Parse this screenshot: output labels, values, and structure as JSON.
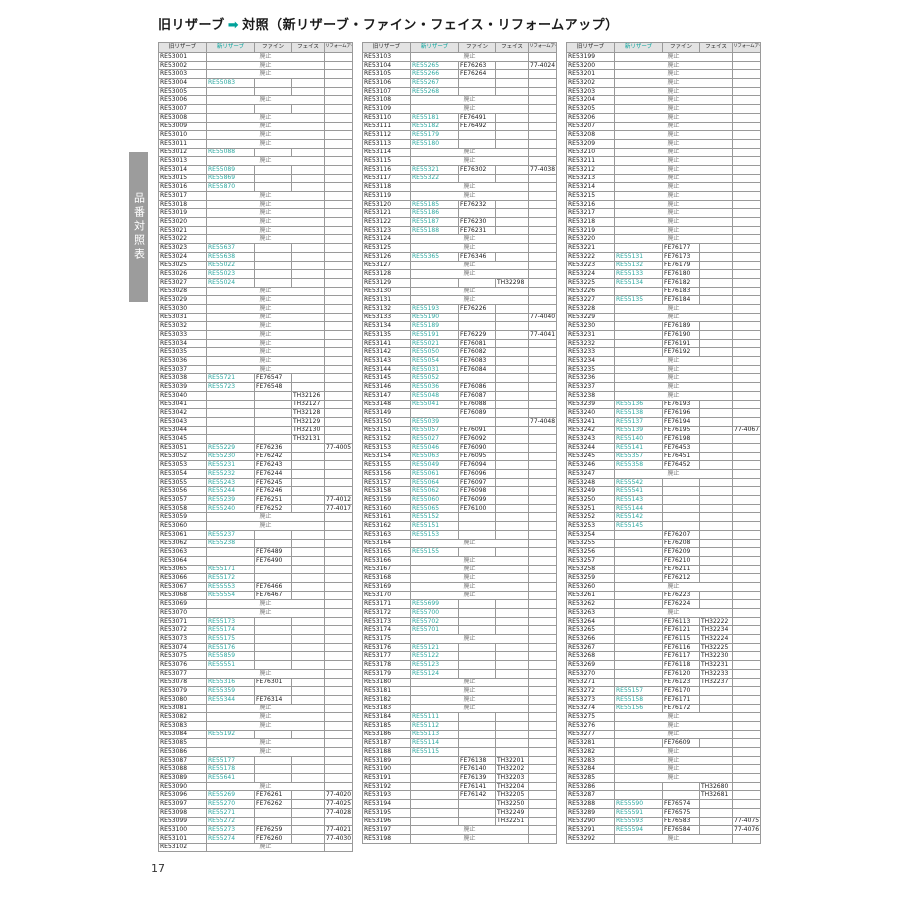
{
  "page": {
    "title_old": "旧リザーブ",
    "title_arrow": "➡",
    "title_rest": "対照（新リザーブ・ファイン・フェイス・リフォームアップ）",
    "side_tab": "品番対照表",
    "page_number": "17",
    "accent_color": "#00a29a",
    "discontinued_label": "廃止"
  },
  "columns": [
    "旧リザーブ",
    "新リザーブ",
    "ファイン",
    "フェイス",
    "リフォームアップ"
  ],
  "tables": [
    {
      "rows": [
        [
          "RE53001",
          "廃止"
        ],
        [
          "RE53002",
          "廃止"
        ],
        [
          "RE53003",
          "廃止"
        ],
        [
          "RE53004",
          "RE55083"
        ],
        [
          "RE53005"
        ],
        [
          "RE53006",
          "廃止"
        ],
        [
          "RE53007"
        ],
        [
          "RE53008",
          "廃止"
        ],
        [
          "RE53009",
          "廃止"
        ],
        [
          "RE53010",
          "廃止"
        ],
        [
          "RE53011",
          "廃止"
        ],
        [
          "RE53012",
          "RE55088"
        ],
        [
          "RE53013",
          "廃止"
        ],
        [
          "RE53014",
          "RE55089"
        ],
        [
          "RE53015",
          "RE55869"
        ],
        [
          "RE53016",
          "RE55870"
        ],
        [
          "RE53017",
          "廃止"
        ],
        [
          "RE53018",
          "廃止"
        ],
        [
          "RE53019",
          "廃止"
        ],
        [
          "RE53020",
          "廃止"
        ],
        [
          "RE53021",
          "廃止"
        ],
        [
          "RE53022",
          "廃止"
        ],
        [
          "RE53023",
          "RE55637"
        ],
        [
          "RE53024",
          "RE55638"
        ],
        [
          "RE53025",
          "RE55022"
        ],
        [
          "RE53026",
          "RE55023"
        ],
        [
          "RE53027",
          "RE55024"
        ],
        [
          "RE53028",
          "廃止"
        ],
        [
          "RE53029",
          "廃止"
        ],
        [
          "RE53030",
          "廃止"
        ],
        [
          "RE53031",
          "廃止"
        ],
        [
          "RE53032",
          "廃止"
        ],
        [
          "RE53033",
          "廃止"
        ],
        [
          "RE53034",
          "廃止"
        ],
        [
          "RE53035",
          "廃止"
        ],
        [
          "RE53036",
          "廃止"
        ],
        [
          "RE53037",
          "廃止"
        ],
        [
          "RE53038",
          "RE55721",
          "FE76547"
        ],
        [
          "RE53039",
          "RE55723",
          "FE76548"
        ],
        [
          "RE53040",
          "",
          "",
          "TH32126"
        ],
        [
          "RE53041",
          "",
          "",
          "TH32127"
        ],
        [
          "RE53042",
          "",
          "",
          "TH32128"
        ],
        [
          "RE53043",
          "",
          "",
          "TH32129"
        ],
        [
          "RE53044",
          "",
          "",
          "TH32130"
        ],
        [
          "RE53045",
          "",
          "",
          "TH32131"
        ],
        [
          "RE53051",
          "RE55229",
          "FE76236",
          "",
          "77-4005"
        ],
        [
          "RE53052",
          "RE55230",
          "FE76242"
        ],
        [
          "RE53053",
          "RE55231",
          "FE76243"
        ],
        [
          "RE53054",
          "RE55232",
          "FE76244"
        ],
        [
          "RE53055",
          "RE55243",
          "FE76245"
        ],
        [
          "RE53056",
          "RE55244",
          "FE76246"
        ],
        [
          "RE53057",
          "RE55239",
          "FE76251",
          "",
          "77-4012"
        ],
        [
          "RE53058",
          "RE55240",
          "FE76252",
          "",
          "77-4017"
        ],
        [
          "RE53059",
          "廃止"
        ],
        [
          "RE53060",
          "廃止"
        ],
        [
          "RE53061",
          "RE55237"
        ],
        [
          "RE53062",
          "RE55238"
        ],
        [
          "RE53063",
          "",
          "FE76489"
        ],
        [
          "RE53064",
          "",
          "FE76490"
        ],
        [
          "RE53065",
          "RE55171"
        ],
        [
          "RE53066",
          "RE55172"
        ],
        [
          "RE53067",
          "RE55553",
          "FE76466"
        ],
        [
          "RE53068",
          "RE55554",
          "FE76467"
        ],
        [
          "RE53069",
          "廃止"
        ],
        [
          "RE53070",
          "廃止"
        ],
        [
          "RE53071",
          "RE55173"
        ],
        [
          "RE53072",
          "RE55174"
        ],
        [
          "RE53073",
          "RE55175"
        ],
        [
          "RE53074",
          "RE55176"
        ],
        [
          "RE53075",
          "RE55859"
        ],
        [
          "RE53076",
          "RE55551"
        ],
        [
          "RE53077",
          "廃止"
        ],
        [
          "RE53078",
          "RE55316",
          "FE76301"
        ],
        [
          "RE53079",
          "RE55359"
        ],
        [
          "RE53080",
          "RE55344",
          "FE76314"
        ],
        [
          "RE53081",
          "廃止"
        ],
        [
          "RE53082",
          "廃止"
        ],
        [
          "RE53083",
          "廃止"
        ],
        [
          "RE53084",
          "RE55192"
        ],
        [
          "RE53085",
          "廃止"
        ],
        [
          "RE53086",
          "廃止"
        ],
        [
          "RE53087",
          "RE55177"
        ],
        [
          "RE53088",
          "RE55178"
        ],
        [
          "RE53089",
          "RE55641"
        ],
        [
          "RE53090",
          "廃止"
        ],
        [
          "RE53096",
          "RE55269",
          "FE76261",
          "",
          "77-4020"
        ],
        [
          "RE53097",
          "RE55270",
          "FE76262",
          "",
          "77-4025"
        ],
        [
          "RE53098",
          "RE55271",
          "",
          "",
          "77-4028"
        ],
        [
          "RE53099",
          "RE55272"
        ],
        [
          "RE53100",
          "RE55273",
          "FE76259",
          "",
          "77-4021"
        ],
        [
          "RE53101",
          "RE55274",
          "FE76260",
          "",
          "77-4030"
        ],
        [
          "RE53102",
          "廃止"
        ]
      ]
    },
    {
      "rows": [
        [
          "RE53103",
          "廃止"
        ],
        [
          "RE53104",
          "RE55265",
          "FE76263",
          "",
          "77-4024"
        ],
        [
          "RE53105",
          "RE55266",
          "FE76264"
        ],
        [
          "RE53106",
          "RE55267"
        ],
        [
          "RE53107",
          "RE55268"
        ],
        [
          "RE53108",
          "廃止"
        ],
        [
          "RE53109",
          "廃止"
        ],
        [
          "RE53110",
          "RE55181",
          "FE76491"
        ],
        [
          "RE53111",
          "RE55182",
          "FE76492"
        ],
        [
          "RE53112",
          "RE55179"
        ],
        [
          "RE53113",
          "RE55180"
        ],
        [
          "RE53114",
          "廃止"
        ],
        [
          "RE53115",
          "廃止"
        ],
        [
          "RE53116",
          "RE55321",
          "FE76302",
          "",
          "77-4038"
        ],
        [
          "RE53117",
          "RE55322"
        ],
        [
          "RE53118",
          "廃止"
        ],
        [
          "RE53119",
          "廃止"
        ],
        [
          "RE53120",
          "RE55185",
          "FE76232"
        ],
        [
          "RE53121",
          "RE55186"
        ],
        [
          "RE53122",
          "RE55187",
          "FE76230"
        ],
        [
          "RE53123",
          "RE55188",
          "FE76231"
        ],
        [
          "RE53124",
          "廃止"
        ],
        [
          "RE53125",
          "廃止"
        ],
        [
          "RE53126",
          "RE55365",
          "FE76346"
        ],
        [
          "RE53127",
          "廃止"
        ],
        [
          "RE53128",
          "廃止"
        ],
        [
          "RE53129",
          "",
          "",
          "TH32298"
        ],
        [
          "RE53130",
          "廃止"
        ],
        [
          "RE53131",
          "廃止"
        ],
        [
          "RE53132",
          "RE55193",
          "FE76226"
        ],
        [
          "RE53133",
          "RE55190",
          "",
          "",
          "77-4040"
        ],
        [
          "RE53134",
          "RE55189"
        ],
        [
          "RE53135",
          "RE55191",
          "FE76229",
          "",
          "77-4041"
        ],
        [
          "RE53141",
          "RE55021",
          "FE76081"
        ],
        [
          "RE53142",
          "RE55050",
          "FE76082"
        ],
        [
          "RE53143",
          "RE55054",
          "FE76083"
        ],
        [
          "RE53144",
          "RE55031",
          "FE76084"
        ],
        [
          "RE53145",
          "RE55052"
        ],
        [
          "RE53146",
          "RE55036",
          "FE76086"
        ],
        [
          "RE53147",
          "RE55048",
          "FE76087"
        ],
        [
          "RE53148",
          "RE55041",
          "FE76088"
        ],
        [
          "RE53149",
          "",
          "FE76089"
        ],
        [
          "RE53150",
          "RE55039",
          "",
          "",
          "77-4048"
        ],
        [
          "RE53151",
          "RE55057",
          "FE76091"
        ],
        [
          "RE53152",
          "RE55027",
          "FE76092"
        ],
        [
          "RE53153",
          "RE55046",
          "FE76090"
        ],
        [
          "RE53154",
          "RE55063",
          "FE76095"
        ],
        [
          "RE53155",
          "RE55049",
          "FE76094"
        ],
        [
          "RE53156",
          "RE55061",
          "FE76096"
        ],
        [
          "RE53157",
          "RE55064",
          "FE76097"
        ],
        [
          "RE53158",
          "RE55062",
          "FE76098"
        ],
        [
          "RE53159",
          "RE55060",
          "FE76099"
        ],
        [
          "RE53160",
          "RE55065",
          "FE76100"
        ],
        [
          "RE53161",
          "RE55152"
        ],
        [
          "RE53162",
          "RE55151"
        ],
        [
          "RE53163",
          "RE55153"
        ],
        [
          "RE53164",
          "廃止"
        ],
        [
          "RE53165",
          "RE55155"
        ],
        [
          "RE53166",
          "廃止"
        ],
        [
          "RE53167",
          "廃止"
        ],
        [
          "RE53168",
          "廃止"
        ],
        [
          "RE53169",
          "廃止"
        ],
        [
          "RE53170",
          "廃止"
        ],
        [
          "RE53171",
          "RE55699"
        ],
        [
          "RE53172",
          "RE55700"
        ],
        [
          "RE53173",
          "RE55702"
        ],
        [
          "RE53174",
          "RE55701"
        ],
        [
          "RE53175",
          "廃止"
        ],
        [
          "RE53176",
          "RE55121"
        ],
        [
          "RE53177",
          "RE55122"
        ],
        [
          "RE53178",
          "RE55123"
        ],
        [
          "RE53179",
          "RE55124"
        ],
        [
          "RE53180",
          "廃止"
        ],
        [
          "RE53181",
          "廃止"
        ],
        [
          "RE53182",
          "廃止"
        ],
        [
          "RE53183",
          "廃止"
        ],
        [
          "RE53184",
          "RE55111"
        ],
        [
          "RE53185",
          "RE55112"
        ],
        [
          "RE53186",
          "RE55113"
        ],
        [
          "RE53187",
          "RE55114"
        ],
        [
          "RE53188",
          "RE55115"
        ],
        [
          "RE53189",
          "",
          "FE76138",
          "TH32201"
        ],
        [
          "RE53190",
          "",
          "FE76140",
          "TH32202"
        ],
        [
          "RE53191",
          "",
          "FE76139",
          "TH32203"
        ],
        [
          "RE53192",
          "",
          "FE76141",
          "TH32204"
        ],
        [
          "RE53193",
          "",
          "FE76142",
          "TH32205"
        ],
        [
          "RE53194",
          "",
          "",
          "TH32250"
        ],
        [
          "RE53195",
          "",
          "",
          "TH32249"
        ],
        [
          "RE53196",
          "",
          "",
          "TH32251"
        ],
        [
          "RE53197",
          "廃止"
        ],
        [
          "RE53198",
          "廃止"
        ]
      ]
    },
    {
      "rows": [
        [
          "RE53199",
          "廃止"
        ],
        [
          "RE53200",
          "廃止"
        ],
        [
          "RE53201",
          "廃止"
        ],
        [
          "RE53202",
          "廃止"
        ],
        [
          "RE53203",
          "廃止"
        ],
        [
          "RE53204",
          "廃止"
        ],
        [
          "RE53205",
          "廃止"
        ],
        [
          "RE53206",
          "廃止"
        ],
        [
          "RE53207",
          "廃止"
        ],
        [
          "RE53208",
          "廃止"
        ],
        [
          "RE53209",
          "廃止"
        ],
        [
          "RE53210",
          "廃止"
        ],
        [
          "RE53211",
          "廃止"
        ],
        [
          "RE53212",
          "廃止"
        ],
        [
          "RE53213",
          "廃止"
        ],
        [
          "RE53214",
          "廃止"
        ],
        [
          "RE53215",
          "廃止"
        ],
        [
          "RE53216",
          "廃止"
        ],
        [
          "RE53217",
          "廃止"
        ],
        [
          "RE53218",
          "廃止"
        ],
        [
          "RE53219",
          "廃止"
        ],
        [
          "RE53220",
          "廃止"
        ],
        [
          "RE53221",
          "",
          "FE76177"
        ],
        [
          "RE53222",
          "RE55131",
          "FE76173"
        ],
        [
          "RE53223",
          "RE55132",
          "FE76179"
        ],
        [
          "RE53224",
          "RE55133",
          "FE76180"
        ],
        [
          "RE53225",
          "RE55134",
          "FE76182"
        ],
        [
          "RE53226",
          "",
          "FE76183"
        ],
        [
          "RE53227",
          "RE55135",
          "FE76184"
        ],
        [
          "RE53228",
          "廃止"
        ],
        [
          "RE53229",
          "廃止"
        ],
        [
          "RE53230",
          "",
          "FE76189"
        ],
        [
          "RE53231",
          "",
          "FE76190"
        ],
        [
          "RE53232",
          "",
          "FE76191"
        ],
        [
          "RE53233",
          "",
          "FE76192"
        ],
        [
          "RE53234",
          "廃止"
        ],
        [
          "RE53235",
          "廃止"
        ],
        [
          "RE53236",
          "廃止"
        ],
        [
          "RE53237",
          "廃止"
        ],
        [
          "RE53238",
          "廃止"
        ],
        [
          "RE53239",
          "RE55136",
          "FE76193"
        ],
        [
          "RE53240",
          "RE55138",
          "FE76196"
        ],
        [
          "RE53241",
          "RE55137",
          "FE76194"
        ],
        [
          "RE53242",
          "RE55139",
          "FE76195",
          "",
          "77-4067"
        ],
        [
          "RE53243",
          "RE55140",
          "FE76198"
        ],
        [
          "RE53244",
          "RE55141",
          "FE76453"
        ],
        [
          "RE53245",
          "RE55357",
          "FE76451"
        ],
        [
          "RE53246",
          "RE55358",
          "FE76452"
        ],
        [
          "RE53247",
          "廃止"
        ],
        [
          "RE53248",
          "RE55542"
        ],
        [
          "RE53249",
          "RE55541"
        ],
        [
          "RE53250",
          "RE55143"
        ],
        [
          "RE53251",
          "RE55144"
        ],
        [
          "RE53252",
          "RE55142"
        ],
        [
          "RE53253",
          "RE55145"
        ],
        [
          "RE53254",
          "",
          "FE76207"
        ],
        [
          "RE53255",
          "",
          "FE76208"
        ],
        [
          "RE53256",
          "",
          "FE76209"
        ],
        [
          "RE53257",
          "",
          "FE76210"
        ],
        [
          "RE53258",
          "",
          "FE76211"
        ],
        [
          "RE53259",
          "",
          "FE76212"
        ],
        [
          "RE53260",
          "廃止"
        ],
        [
          "RE53261",
          "",
          "FE76223"
        ],
        [
          "RE53262",
          "",
          "FE76224"
        ],
        [
          "RE53263",
          "廃止"
        ],
        [
          "RE53264",
          "",
          "FE76113",
          "TH32222"
        ],
        [
          "RE53265",
          "",
          "FE76121",
          "TH32234"
        ],
        [
          "RE53266",
          "",
          "FE76115",
          "TH32224"
        ],
        [
          "RE53267",
          "",
          "FE76116",
          "TH32225"
        ],
        [
          "RE53268",
          "",
          "FE76117",
          "TH32230"
        ],
        [
          "RE53269",
          "",
          "FE76118",
          "TH32231"
        ],
        [
          "RE53270",
          "",
          "FE76120",
          "TH32233"
        ],
        [
          "RE53271",
          "",
          "FE76123",
          "TH32237"
        ],
        [
          "RE53272",
          "RE55157",
          "FE76170"
        ],
        [
          "RE53273",
          "RE55158",
          "FE76171"
        ],
        [
          "RE53274",
          "RE55156",
          "FE76172"
        ],
        [
          "RE53275",
          "廃止"
        ],
        [
          "RE53276",
          "廃止"
        ],
        [
          "RE53277",
          "廃止"
        ],
        [
          "RE53281",
          "",
          "FE76609"
        ],
        [
          "RE53282",
          "廃止"
        ],
        [
          "RE53283",
          "廃止"
        ],
        [
          "RE53284",
          "廃止"
        ],
        [
          "RE53285",
          "廃止"
        ],
        [
          "RE53286",
          "",
          "",
          "TH32680"
        ],
        [
          "RE53287",
          "",
          "",
          "TH32681"
        ],
        [
          "RE53288",
          "RE55590",
          "FE76574"
        ],
        [
          "RE53289",
          "RE55591",
          "FE76575"
        ],
        [
          "RE53290",
          "RE55593",
          "FE76583",
          "",
          "77-4075"
        ],
        [
          "RE53291",
          "RE55594",
          "FE76584",
          "",
          "77-4076"
        ],
        [
          "RE53292",
          "廃止"
        ]
      ]
    }
  ]
}
